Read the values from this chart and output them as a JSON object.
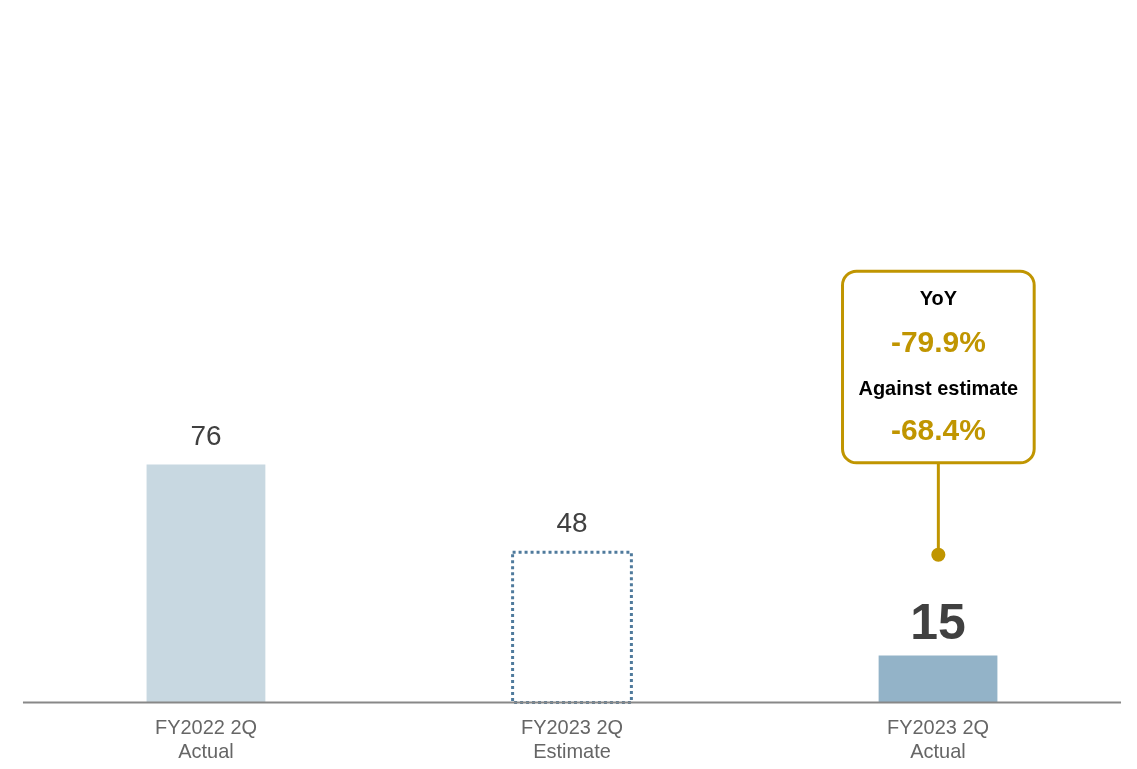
{
  "chart_data": {
    "type": "bar",
    "stacked": true,
    "data_labels": true,
    "categories": [
      "FY2022 2Q\nActual",
      "FY2023 2Q\nEstimate",
      "FY2023 2Q\nActual"
    ],
    "series": [
      {
        "colors": [
          "#c8d8e1",
          null,
          "#93b3c8"
        ],
        "values": [
          76,
          null,
          15
        ]
      },
      {
        "color": "#4f7a9c",
        "line_style": "dotted",
        "values": [
          null,
          48,
          null
        ]
      }
    ],
    "annotations": [
      "YoY",
      "-79.9%",
      "Against estimate",
      "-68.4%"
    ]
  }
}
